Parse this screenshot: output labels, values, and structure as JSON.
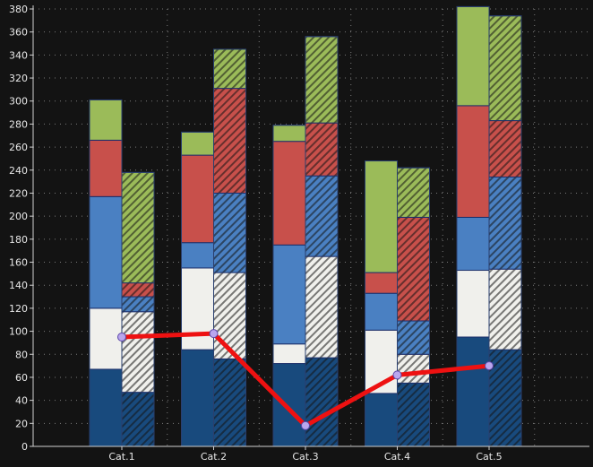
{
  "chart_data": {
    "type": "bar",
    "stacked": true,
    "categories": [
      "Cat.1",
      "Cat.2",
      "Cat.3",
      "Cat.4",
      "Cat.5"
    ],
    "ylim": [
      0,
      380
    ],
    "yticks": [
      "0",
      "20",
      "40",
      "60",
      "80",
      "100",
      "120",
      "140",
      "160",
      "180",
      "200",
      "220",
      "240",
      "260",
      "280",
      "300",
      "320",
      "340",
      "360",
      "380"
    ],
    "grid": true,
    "legend": "none",
    "stacks": [
      {
        "pattern": "solid",
        "series": [
          {
            "color": "#184a7d",
            "values": [
              67,
              84,
              72,
              46,
              95
            ]
          },
          {
            "color": "#f0f0ec",
            "values": [
              53,
              71,
              17,
              55,
              58
            ]
          },
          {
            "color": "#4a80c2",
            "values": [
              97,
              22,
              86,
              32,
              46
            ]
          },
          {
            "color": "#c8504b",
            "values": [
              49,
              76,
              90,
              18,
              97
            ]
          },
          {
            "color": "#9bbb59",
            "values": [
              35,
              20,
              14,
              97,
              86
            ]
          }
        ]
      },
      {
        "pattern": "hatched",
        "series": [
          {
            "color": "#184a7d",
            "values": [
              47,
              76,
              77,
              55,
              84
            ]
          },
          {
            "color": "#f0f0ec",
            "values": [
              70,
              75,
              88,
              25,
              70
            ]
          },
          {
            "color": "#4a80c2",
            "values": [
              13,
              69,
              70,
              29,
              80
            ]
          },
          {
            "color": "#c8504b",
            "values": [
              12,
              91,
              46,
              90,
              49
            ]
          },
          {
            "color": "#9bbb59",
            "values": [
              96,
              34,
              75,
              43,
              91
            ]
          }
        ]
      }
    ],
    "line": {
      "color": "#ee1111",
      "marker_color": "#b9a6ee",
      "values": [
        95,
        98,
        18,
        62,
        70
      ]
    }
  }
}
